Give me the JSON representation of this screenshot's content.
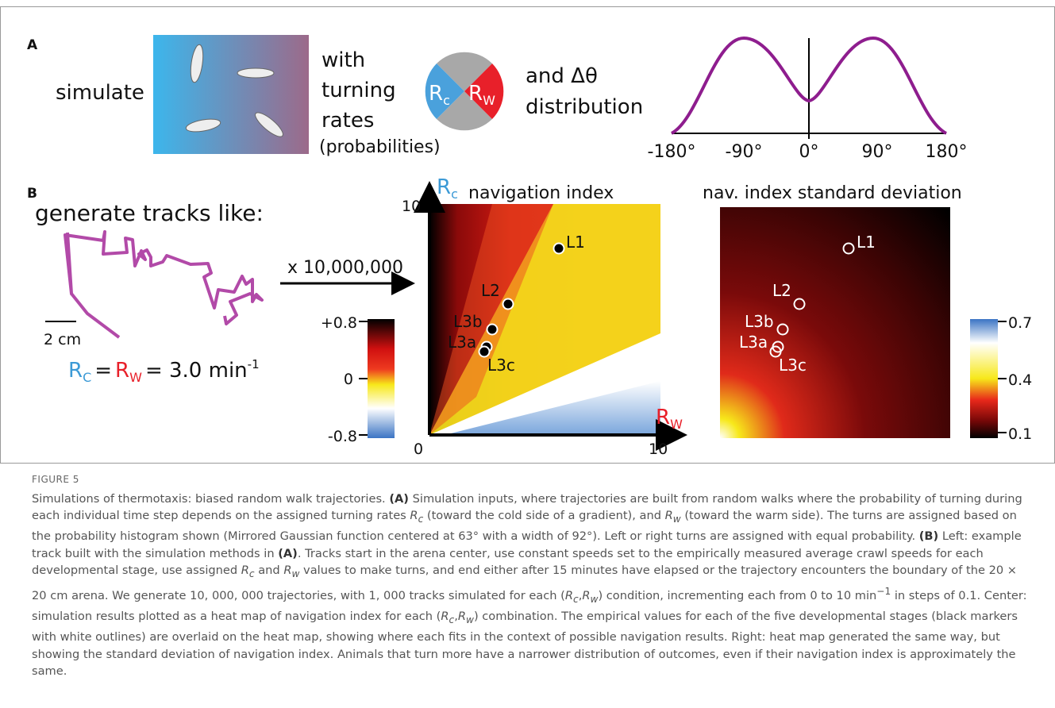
{
  "panel_a": {
    "label": "A",
    "simulate": "simulate",
    "with": "with",
    "turning": "turning",
    "rates": "rates",
    "probabilities": "(probabilities)",
    "rc": {
      "r": "R",
      "sub": "c"
    },
    "rw": {
      "r": "R",
      "sub": "W"
    },
    "and_dtheta": "and Δθ",
    "distribution": "distribution",
    "ticks": [
      "-180°",
      "-90°",
      "0°",
      "90°",
      "180°"
    ]
  },
  "panel_b": {
    "label": "B",
    "generate": "generate tracks like:",
    "scale": "2 cm",
    "rate": {
      "rc": "R",
      "rc_sub": "C",
      "eq": "=",
      "rw": "R",
      "rw_sub": "W",
      "value": "= 3.0 min",
      "exp": "-1"
    },
    "multiplier": "x 10,000,000",
    "nav": {
      "title": "navigation index",
      "y_axis": {
        "r": "R",
        "sub": "c"
      },
      "x_axis": {
        "r": "R",
        "sub": "W"
      },
      "y_max": "10",
      "origin": "0",
      "x_max": "10",
      "colorbar": [
        "+0.8",
        "0",
        "-0.8"
      ],
      "stages": [
        "L1",
        "L2",
        "L3b",
        "L3a",
        "L3c"
      ]
    },
    "sd": {
      "title": "nav. index standard deviation",
      "colorbar": [
        "0.7",
        "0.4",
        "0.1"
      ],
      "stages": [
        "L1",
        "L2",
        "L3b",
        "L3a",
        "L3c"
      ]
    }
  },
  "caption": {
    "figure": "FIGURE 5",
    "parts": [
      "Simulations of thermotaxis: biased random walk trajectories. ",
      "(A)",
      " Simulation inputs, where trajectories are built from random walks where the probability of turning during each individual time step depends on the assigned turning rates ",
      "R",
      "c",
      " (toward the cold side of a gradient), and ",
      "R",
      "w",
      " (toward the warm side). The turns are assigned based on the probability histogram shown (Mirrored Gaussian function centered at 63° with a width of 92°). Left or right turns are assigned with equal probability. ",
      "(B)",
      " Left: example track built with the simulation methods in ",
      "(A)",
      ". Tracks start in the arena center, use constant speeds set to the empirically measured average crawl speeds for each developmental stage, use assigned ",
      "R",
      "c",
      " and ",
      "R",
      "w",
      " values to make turns, and end either after 15 minutes have elapsed or the trajectory encounters the boundary of the 20 × 20 cm arena. We generate 10, 000, 000 trajectories, with 1, 000 tracks simulated for each (",
      "R",
      "c",
      ",",
      "R",
      "w",
      ") condition, incrementing each from 0 to 10 min",
      "−1",
      " in steps of 0.1. Center: simulation results plotted as a heat map of navigation index for each (",
      "R",
      "c",
      ",",
      "R",
      "w",
      ") combination. The empirical values for each of the five developmental stages (black markers with white outlines) are overlaid on the heat map, showing where each fits in the context of possible navigation results. Right: heat map generated the same way, but showing the standard deviation of navigation index. Animals that turn more have a narrower distribution of outcomes, even if their navigation index is approximately the same."
    ]
  }
}
